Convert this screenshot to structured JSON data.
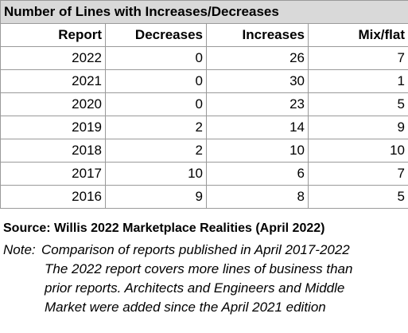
{
  "table": {
    "title": "Number of Lines with Increases/Decreases",
    "columns": [
      "Report",
      "Decreases",
      "Increases",
      "Mix/flat"
    ],
    "rows": [
      {
        "report": "2022",
        "decreases": "0",
        "increases": "26",
        "mixflat": "7"
      },
      {
        "report": "2021",
        "decreases": "0",
        "increases": "30",
        "mixflat": "1"
      },
      {
        "report": "2020",
        "decreases": "0",
        "increases": "23",
        "mixflat": "5"
      },
      {
        "report": "2019",
        "decreases": "2",
        "increases": "14",
        "mixflat": "9"
      },
      {
        "report": "2018",
        "decreases": "2",
        "increases": "10",
        "mixflat": "10"
      },
      {
        "report": "2017",
        "decreases": "10",
        "increases": "6",
        "mixflat": "7"
      },
      {
        "report": "2016",
        "decreases": "9",
        "increases": "8",
        "mixflat": "5"
      }
    ]
  },
  "footer": {
    "source": "Source: Willis 2022 Marketplace Realities (April 2022)",
    "note_label": "Note:",
    "note_lines": [
      "Comparison of reports published in April 2017-2022",
      "The 2022 report covers more lines of business than",
      "prior reports. Architects and Engineers and Middle",
      "Market were added since the April 2021 edition"
    ]
  }
}
